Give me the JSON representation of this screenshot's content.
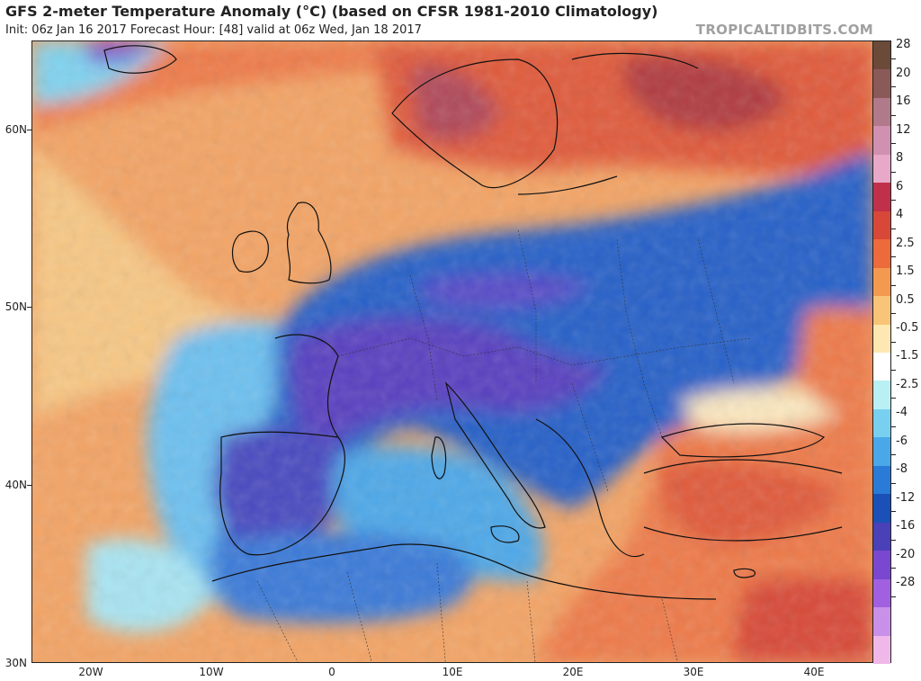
{
  "header": {
    "title": "GFS 2-meter Temperature Anomaly (°C) (based on CFSR 1981-2010 Climatology)",
    "subtitle": "Init: 06z Jan 16 2017   Forecast Hour: [48]   valid at 06z Wed, Jan 18 2017",
    "brand": "TROPICALTIDBITS.COM"
  },
  "map": {
    "lat_labels": [
      "60N",
      "50N",
      "40N",
      "30N"
    ],
    "lon_labels": [
      "20W",
      "10W",
      "0",
      "10E",
      "20E",
      "30E",
      "40E"
    ]
  },
  "colorbar": {
    "labels": [
      "28",
      "20",
      "16",
      "12",
      "8",
      "6",
      "4",
      "2.5",
      "1.5",
      "0.5",
      "-0.5",
      "-1.5",
      "-2.5",
      "-4",
      "-6",
      "-8",
      "-12",
      "-16",
      "-20",
      "-28"
    ],
    "colors": [
      "#6b4a3a",
      "#8a5a58",
      "#b07a8a",
      "#d090b0",
      "#e8a8c8",
      "#c0304a",
      "#d84838",
      "#ec6a3c",
      "#f49a50",
      "#f8c478",
      "#fce8b0",
      "#ffffff",
      "#b8f0f4",
      "#78d0f0",
      "#4aa8e8",
      "#2a7ad8",
      "#1a50b8",
      "#4a40b8",
      "#7a48d0",
      "#a060e0",
      "#c890e8",
      "#f0b8e8"
    ]
  }
}
